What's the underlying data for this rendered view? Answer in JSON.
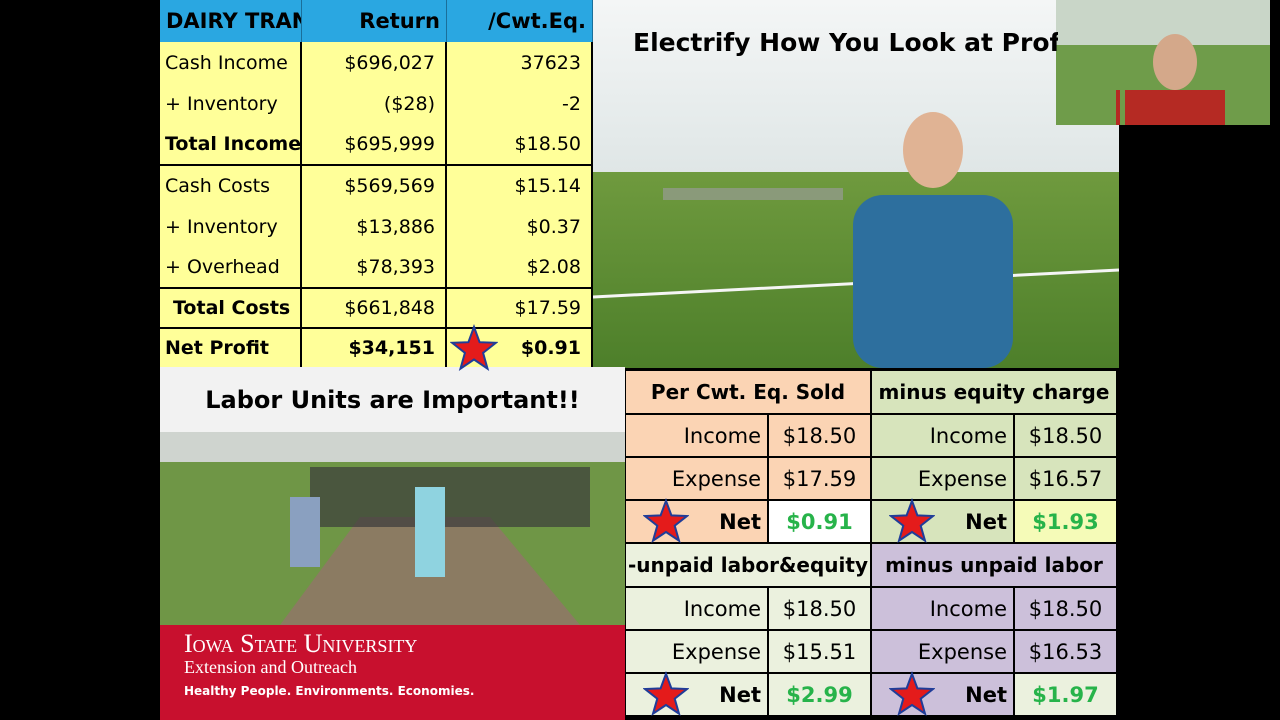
{
  "summary_table": {
    "header": [
      "DAIRY TRANS",
      "Return",
      "/Cwt.Eq."
    ],
    "rows": [
      [
        "Cash Income",
        "$696,027",
        "37623"
      ],
      [
        "+ Inventory",
        "($28)",
        "-2"
      ],
      [
        "Total Income",
        "$695,999",
        "$18.50"
      ],
      [
        "Cash Costs",
        "$569,569",
        "$15.14"
      ],
      [
        "+ Inventory",
        "$13,886",
        "$0.37"
      ],
      [
        "+ Overhead",
        "$78,393",
        "$2.08"
      ],
      [
        "Total Costs",
        "$661,848",
        "$17.59"
      ],
      [
        "Net Profit",
        "$34,151",
        "$0.91"
      ]
    ]
  },
  "photo_title": "Electrify How You Look at Profits",
  "labor_title": "Labor Units are Important!!",
  "banner": {
    "name": "Iowa State University",
    "unit": "Extension and Outreach",
    "tagline": "Healthy People. Environments. Economies."
  },
  "panels": [
    {
      "title": "Per Cwt. Eq. Sold",
      "rows": [
        [
          "Income",
          "$18.50"
        ],
        [
          "Expense",
          "$17.59"
        ],
        [
          "Net",
          "$0.91"
        ]
      ]
    },
    {
      "title": "minus equity charge",
      "rows": [
        [
          "Income",
          "$18.50"
        ],
        [
          "Expense",
          "$16.57"
        ],
        [
          "Net",
          "$1.93"
        ]
      ]
    },
    {
      "title": "-unpaid labor&equity",
      "rows": [
        [
          "Income",
          "$18.50"
        ],
        [
          "Expense",
          "$15.51"
        ],
        [
          "Net",
          "$2.99"
        ]
      ]
    },
    {
      "title": "minus unpaid labor",
      "rows": [
        [
          "Income",
          "$18.50"
        ],
        [
          "Expense",
          "$16.53"
        ],
        [
          "Net",
          "$1.97"
        ]
      ]
    }
  ]
}
